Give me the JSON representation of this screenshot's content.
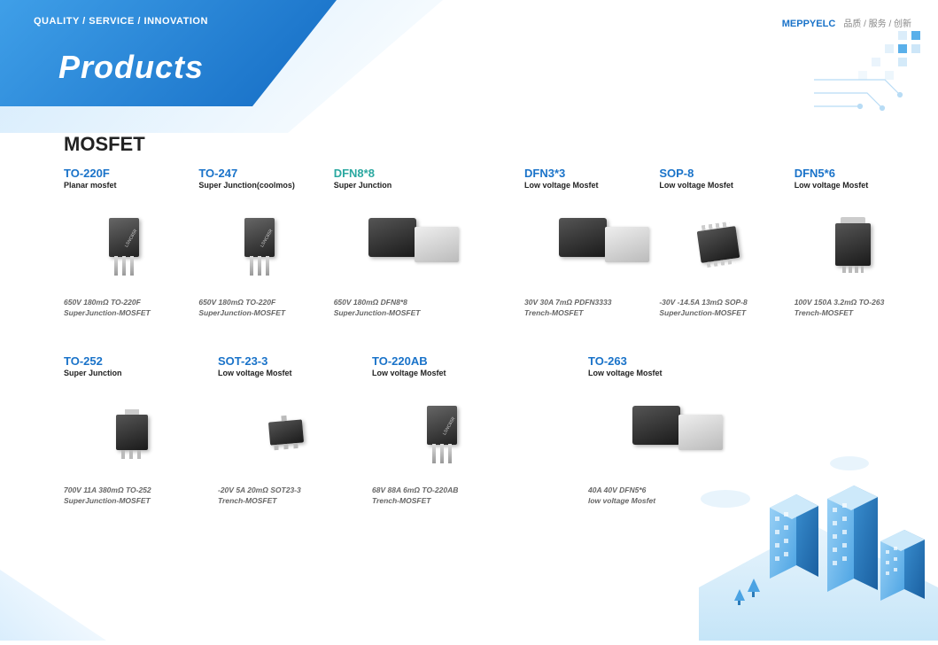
{
  "header": {
    "tagline": "QUALITY / SERVICE / INNOVATION",
    "title": "Products",
    "brand": "MEPPYELC",
    "brand_sub": "品质 / 服务 / 创新"
  },
  "section": {
    "title": "MOSFET"
  },
  "colors": {
    "title_blue": "#1a73c9",
    "title_green": "#2aa8a0",
    "subtitle": "#222222",
    "spec": "#666666",
    "ribbon_start": "#3f9fe8",
    "ribbon_end": "#1a73c9"
  },
  "products": {
    "row1": [
      {
        "title": "TO-220F",
        "title_color": "#1a73c9",
        "sub": "Planar mosfet",
        "spec1": "650V 180mΩ TO-220F",
        "spec2": "SuperJunction-MOSFET",
        "shape": "to220"
      },
      {
        "title": "TO-247",
        "title_color": "#1a73c9",
        "sub": "Super Junction(coolmos)",
        "spec1": "650V 180mΩ TO-220F",
        "spec2": "SuperJunction-MOSFET",
        "shape": "to220"
      },
      {
        "title": "DFN8*8",
        "title_color": "#2aa8a0",
        "sub": "Super Junction",
        "spec1": "650V 180mΩ DFN8*8",
        "spec2": "SuperJunction-MOSFET",
        "shape": "dfn-dual"
      },
      {
        "gap": true
      },
      {
        "title": "DFN3*3",
        "title_color": "#1a73c9",
        "sub": "Low voltage Mosfet",
        "spec1": "30V 30A 7mΩ PDFN3333",
        "spec2": "Trench-MOSFET",
        "shape": "dfn-dual"
      },
      {
        "title": "SOP-8",
        "title_color": "#1a73c9",
        "sub": "Low voltage Mosfet",
        "spec1": "-30V -14.5A 13mΩ SOP-8",
        "spec2": "SuperJunction-MOSFET",
        "shape": "sop"
      },
      {
        "title": "DFN5*6",
        "title_color": "#1a73c9",
        "sub": "Low voltage Mosfet",
        "spec1": "100V 150A 3.2mΩ TO-263",
        "spec2": "Trench-MOSFET",
        "shape": "to263"
      }
    ],
    "row2": [
      {
        "title": "TO-252",
        "title_color": "#1a73c9",
        "sub": "Super Junction",
        "spec1": "700V 11A 380mΩ TO-252",
        "spec2": "SuperJunction-MOSFET",
        "shape": "to252"
      },
      {
        "title": "SOT-23-3",
        "title_color": "#1a73c9",
        "sub": "Low voltage Mosfet",
        "spec1": "-20V 5A 20mΩ SOT23-3",
        "spec2": "Trench-MOSFET",
        "shape": "sot"
      },
      {
        "title": "TO-220AB",
        "title_color": "#1a73c9",
        "sub": "Low voltage Mosfet",
        "spec1": "68V 88A 6mΩ TO-220AB",
        "spec2": "Trench-MOSFET",
        "shape": "to220"
      },
      {
        "gap": true
      },
      {
        "title": "TO-263",
        "title_color": "#1a73c9",
        "sub": "Low voltage Mosfet",
        "spec1": "40A 40V DFN5*6",
        "spec2": "low voltage Mosfet",
        "shape": "dfn-dual"
      }
    ]
  }
}
